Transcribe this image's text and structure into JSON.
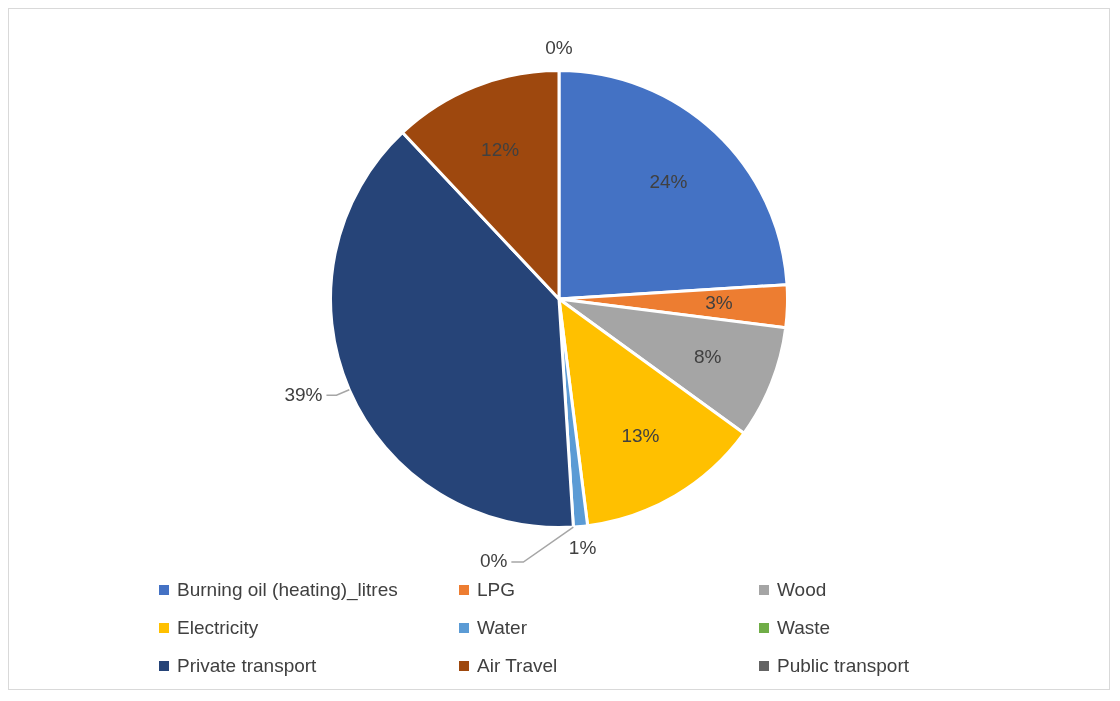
{
  "chart_data": {
    "type": "pie",
    "categories": [
      "Burning oil (heating)_litres",
      "LPG",
      "Wood",
      "Electricity",
      "Water",
      "Waste",
      "Private transport",
      "Air Travel",
      "Public transport"
    ],
    "values": [
      24,
      3,
      8,
      13,
      1,
      0,
      39,
      12,
      0
    ],
    "value_labels": [
      "24%",
      "3%",
      "8%",
      "13%",
      "1%",
      "0%",
      "39%",
      "12%",
      "0%"
    ],
    "colors": [
      "#4472c4",
      "#ed7d31",
      "#a5a5a5",
      "#ffc000",
      "#5b9bd5",
      "#70ad47",
      "#264478",
      "#9e480e",
      "#636363"
    ],
    "legend": "bottom"
  }
}
